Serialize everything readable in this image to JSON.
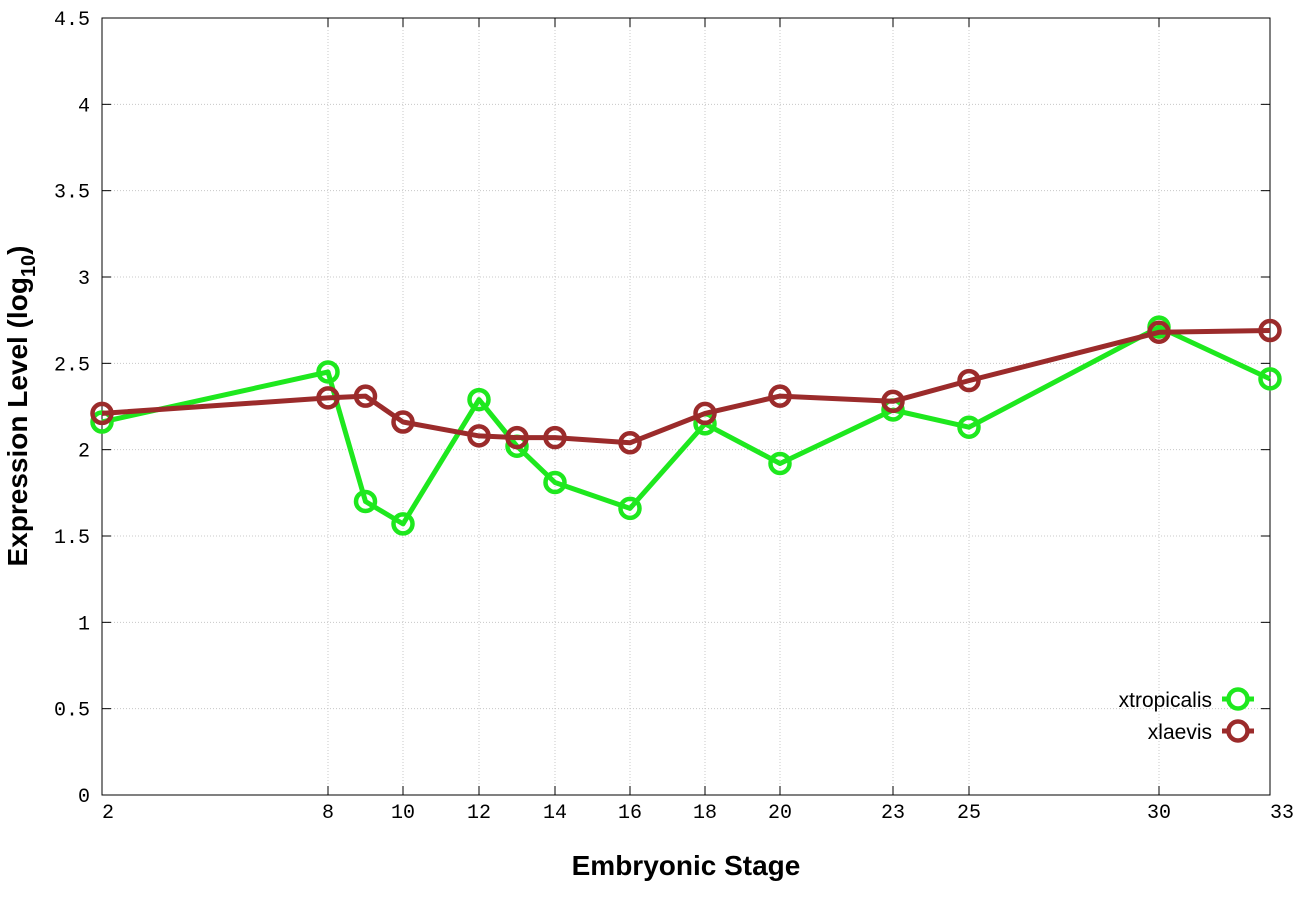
{
  "chart_data": {
    "type": "line",
    "title": "",
    "xlabel": "Embryonic Stage",
    "ylabel": {
      "main": "Expression Level (log",
      "subscript": "10",
      "close": ")"
    },
    "x_tick_labels": [
      "2",
      "8",
      "10",
      "12",
      "14",
      "16",
      "18",
      "20",
      "23",
      "25",
      "30",
      "33"
    ],
    "y_tick_labels": [
      "0",
      "0.5",
      "1",
      "1.5",
      "2",
      "2.5",
      "3",
      "3.5",
      "4",
      "4.5"
    ],
    "ylim": [
      0,
      4.5
    ],
    "grid": true,
    "legend_position": "bottom-right",
    "categories": [
      "2",
      "8",
      "9",
      "10",
      "12",
      "13",
      "14",
      "16",
      "18",
      "20",
      "23",
      "25",
      "30",
      "33"
    ],
    "series": [
      {
        "name": "xtropicalis",
        "color": "#1ee81e",
        "values": [
          2.16,
          2.45,
          1.7,
          1.57,
          2.29,
          2.02,
          1.81,
          1.66,
          2.15,
          1.92,
          2.23,
          2.13,
          2.71,
          2.41
        ]
      },
      {
        "name": "xlaevis",
        "color": "#9b2b2b",
        "values": [
          2.21,
          2.3,
          2.31,
          2.16,
          2.08,
          2.07,
          2.07,
          2.04,
          2.21,
          2.31,
          2.28,
          2.4,
          2.68,
          2.69
        ]
      }
    ]
  }
}
